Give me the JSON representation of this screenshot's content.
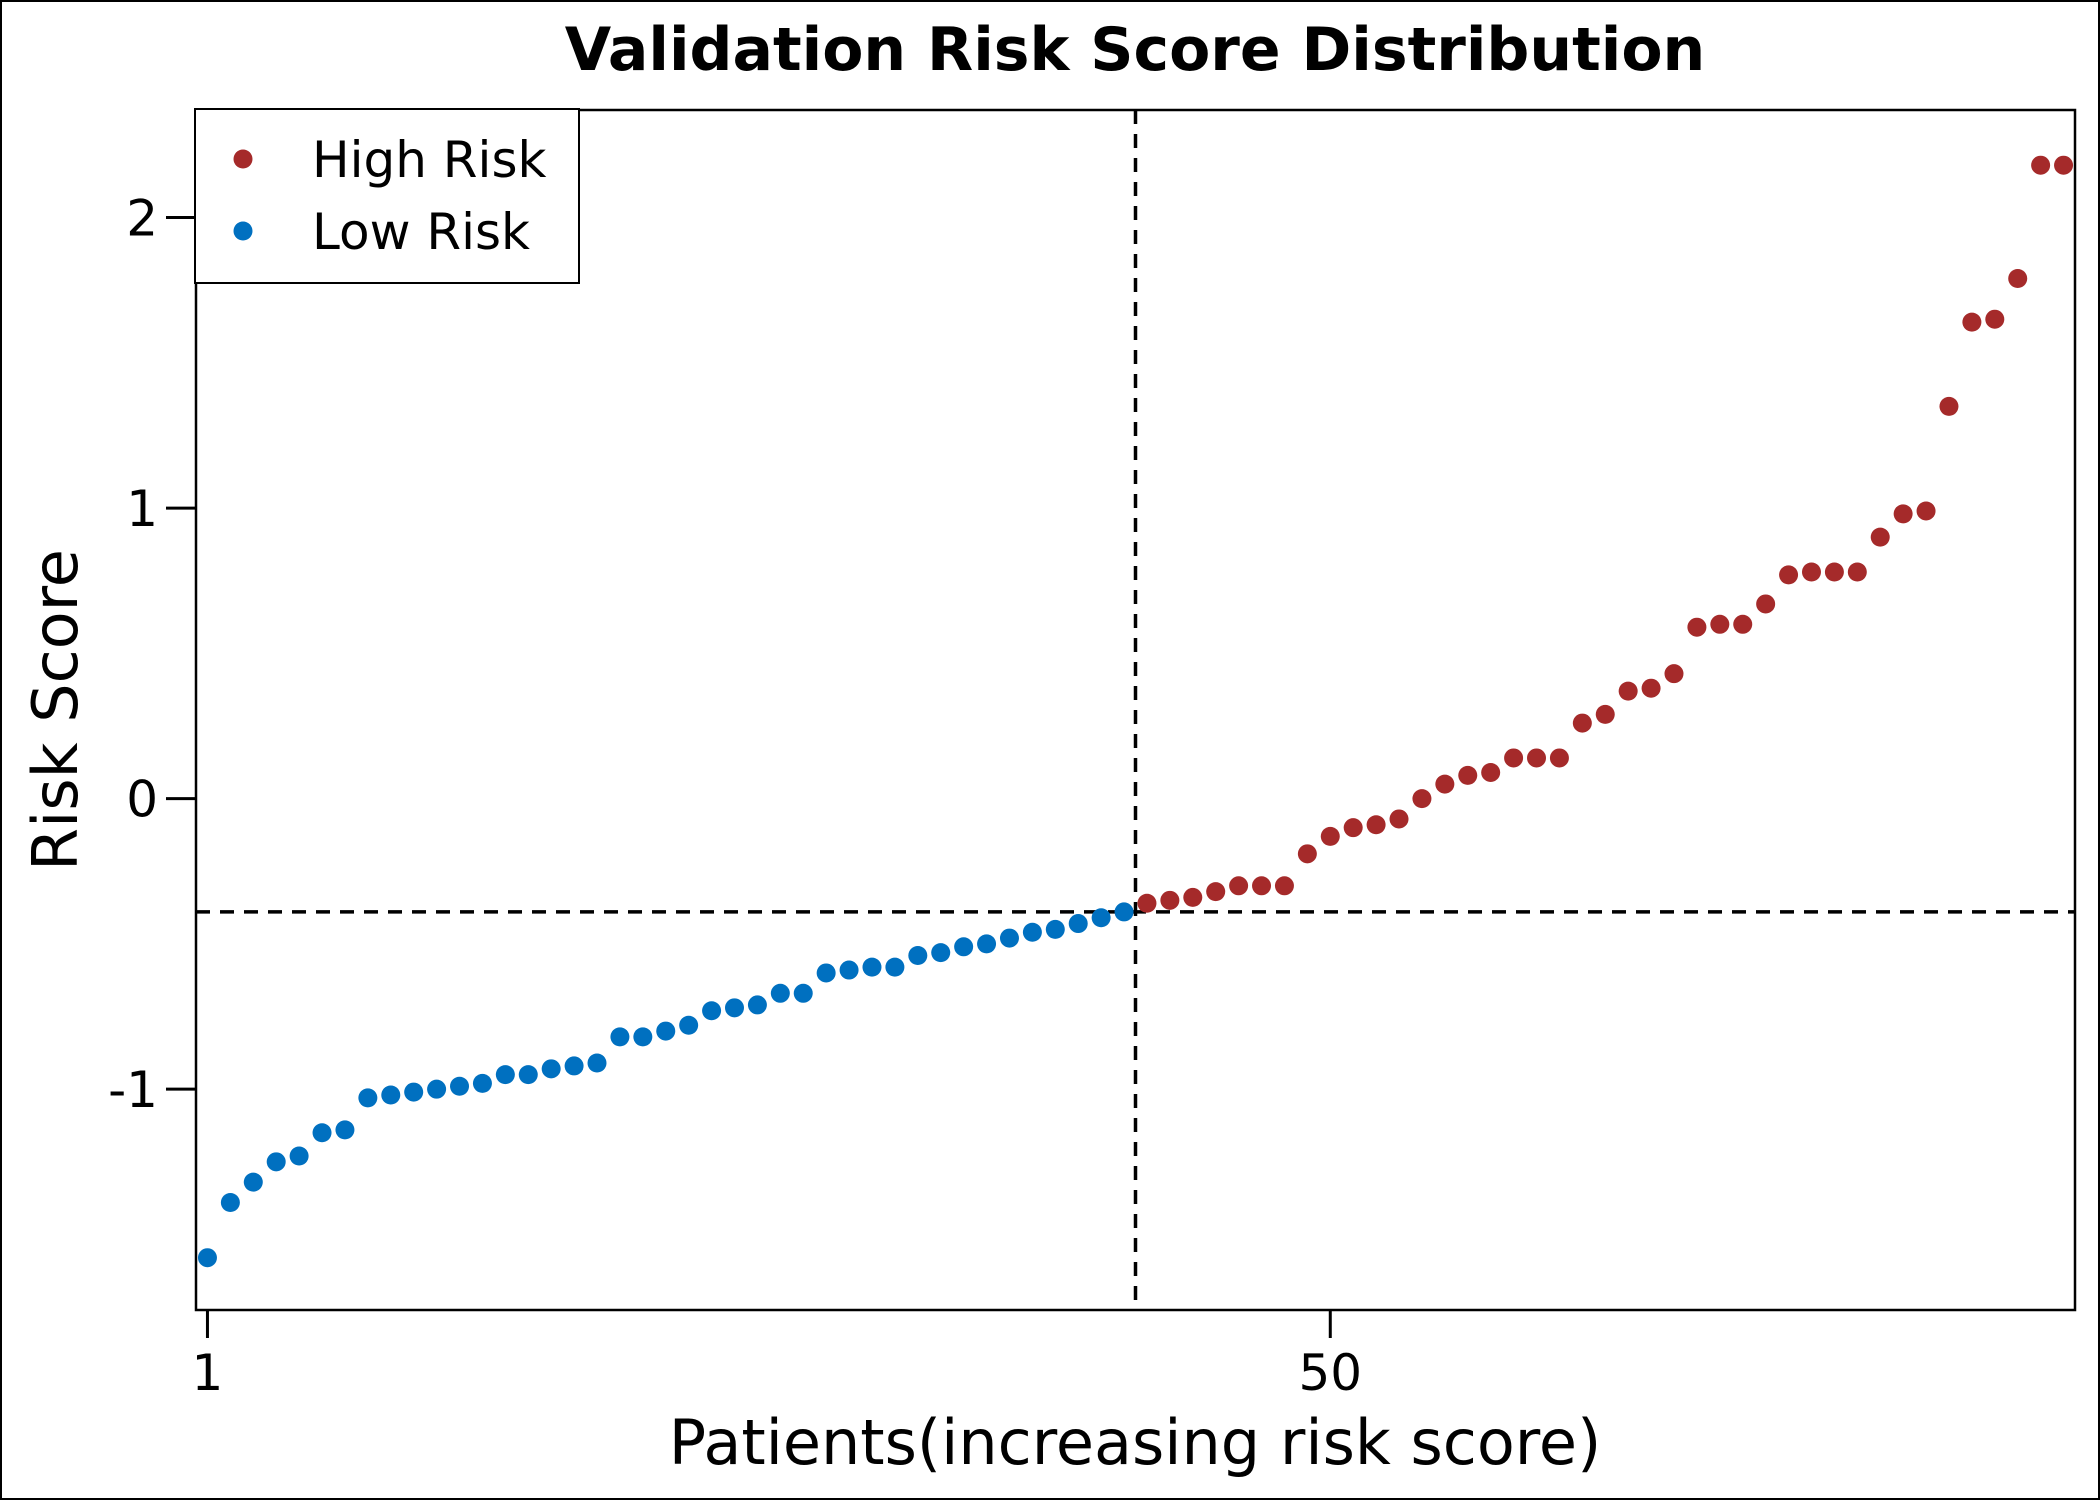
{
  "chart_data": {
    "type": "scatter",
    "title": "Validation Risk Score Distribution",
    "xlabel": "Patients(increasing risk score)",
    "ylabel": "Risk Score",
    "xlim": [
      0.5,
      82.5
    ],
    "ylim": [
      -1.76,
      2.37
    ],
    "x_ticks": [
      1,
      50
    ],
    "x_tick_labels": [
      "1",
      "50"
    ],
    "y_ticks": [
      -1,
      0,
      1,
      2
    ],
    "y_tick_labels": [
      "-1",
      "0",
      "1",
      "2"
    ],
    "grid": false,
    "legend_position": "top-left",
    "cutoff": {
      "x": 41.5,
      "y": -0.39
    },
    "series": [
      {
        "name": "High Risk",
        "color": "#A52A2A",
        "x": [
          42,
          43,
          44,
          45,
          46,
          47,
          48,
          49,
          50,
          51,
          52,
          53,
          54,
          55,
          56,
          57,
          58,
          59,
          60,
          61,
          62,
          63,
          64,
          65,
          66,
          67,
          68,
          69,
          70,
          71,
          72,
          73,
          74,
          75,
          76,
          77,
          78,
          79,
          80,
          81,
          82
        ],
        "values": [
          -0.36,
          -0.35,
          -0.34,
          -0.32,
          -0.3,
          -0.3,
          -0.3,
          -0.19,
          -0.13,
          -0.1,
          -0.09,
          -0.07,
          0.0,
          0.05,
          0.08,
          0.09,
          0.14,
          0.14,
          0.14,
          0.26,
          0.29,
          0.37,
          0.38,
          0.43,
          0.59,
          0.6,
          0.6,
          0.67,
          0.77,
          0.78,
          0.78,
          0.78,
          0.9,
          0.98,
          0.99,
          1.35,
          1.64,
          1.65,
          1.79,
          2.18,
          2.18
        ]
      },
      {
        "name": "Low Risk",
        "color": "#0070C0",
        "x": [
          1,
          2,
          3,
          4,
          5,
          6,
          7,
          8,
          9,
          10,
          11,
          12,
          13,
          14,
          15,
          16,
          17,
          18,
          19,
          20,
          21,
          22,
          23,
          24,
          25,
          26,
          27,
          28,
          29,
          30,
          31,
          32,
          33,
          34,
          35,
          36,
          37,
          38,
          39,
          40,
          41
        ],
        "values": [
          -1.58,
          -1.39,
          -1.32,
          -1.25,
          -1.23,
          -1.15,
          -1.14,
          -1.03,
          -1.02,
          -1.01,
          -1.0,
          -0.99,
          -0.98,
          -0.95,
          -0.95,
          -0.93,
          -0.92,
          -0.91,
          -0.82,
          -0.82,
          -0.8,
          -0.78,
          -0.73,
          -0.72,
          -0.71,
          -0.67,
          -0.67,
          -0.6,
          -0.59,
          -0.58,
          -0.58,
          -0.54,
          -0.53,
          -0.51,
          -0.5,
          -0.48,
          -0.46,
          -0.45,
          -0.43,
          -0.41,
          -0.39
        ]
      }
    ]
  }
}
